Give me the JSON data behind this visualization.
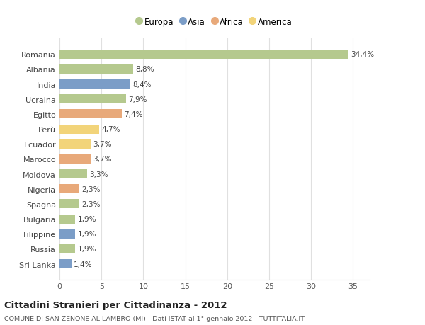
{
  "countries": [
    "Romania",
    "Albania",
    "India",
    "Ucraina",
    "Egitto",
    "Perù",
    "Ecuador",
    "Marocco",
    "Moldova",
    "Nigeria",
    "Spagna",
    "Bulgaria",
    "Filippine",
    "Russia",
    "Sri Lanka"
  ],
  "values": [
    34.4,
    8.8,
    8.4,
    7.9,
    7.4,
    4.7,
    3.7,
    3.7,
    3.3,
    2.3,
    2.3,
    1.9,
    1.9,
    1.9,
    1.4
  ],
  "labels": [
    "34,4%",
    "8,8%",
    "8,4%",
    "7,9%",
    "7,4%",
    "4,7%",
    "3,7%",
    "3,7%",
    "3,3%",
    "2,3%",
    "2,3%",
    "1,9%",
    "1,9%",
    "1,9%",
    "1,4%"
  ],
  "colors": [
    "#b5c98e",
    "#b5c98e",
    "#7b9dc7",
    "#b5c98e",
    "#e8a97a",
    "#f2d47a",
    "#f2d47a",
    "#e8a97a",
    "#b5c98e",
    "#e8a97a",
    "#b5c98e",
    "#b5c98e",
    "#7b9dc7",
    "#b5c98e",
    "#7b9dc7"
  ],
  "legend_labels": [
    "Europa",
    "Asia",
    "Africa",
    "America"
  ],
  "legend_colors": [
    "#b5c98e",
    "#7b9dc7",
    "#e8a97a",
    "#f2d47a"
  ],
  "title": "Cittadini Stranieri per Cittadinanza - 2012",
  "subtitle": "COMUNE DI SAN ZENONE AL LAMBRO (MI) - Dati ISTAT al 1° gennaio 2012 - TUTTITALIA.IT",
  "xlim": [
    0,
    37
  ],
  "xticks": [
    0,
    5,
    10,
    15,
    20,
    25,
    30,
    35
  ],
  "bg_color": "#ffffff",
  "plot_bg_color": "#ffffff",
  "grid_color": "#e0e0e0",
  "bar_height": 0.62
}
